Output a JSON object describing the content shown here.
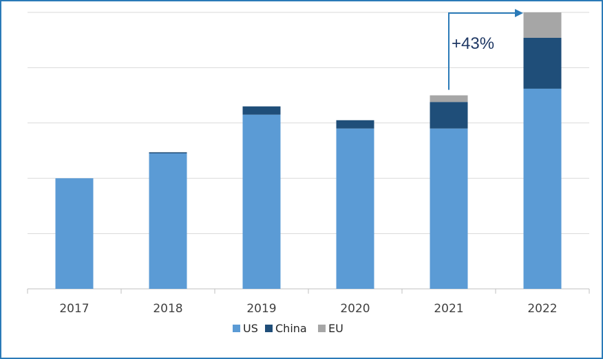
{
  "chart_data": {
    "type": "bar",
    "stacked": true,
    "categories": [
      "2017",
      "2018",
      "2019",
      "2020",
      "2021",
      "2022"
    ],
    "series": [
      {
        "name": "US",
        "color": "#5b9bd5",
        "values": [
          20.0,
          24.5,
          31.5,
          29.0,
          29.0,
          36.2
        ]
      },
      {
        "name": "China",
        "color": "#1f4e79",
        "values": [
          0.0,
          0.2,
          1.5,
          1.5,
          4.8,
          9.2
        ]
      },
      {
        "name": "EU",
        "color": "#a6a6a6",
        "values": [
          0.0,
          0.0,
          0.0,
          0.0,
          1.2,
          4.6
        ]
      }
    ],
    "ylim": [
      0,
      50
    ],
    "grid": true,
    "legend_position": "bottom",
    "annotation": {
      "text": "+43%",
      "from": "2021",
      "to": "2022"
    }
  }
}
